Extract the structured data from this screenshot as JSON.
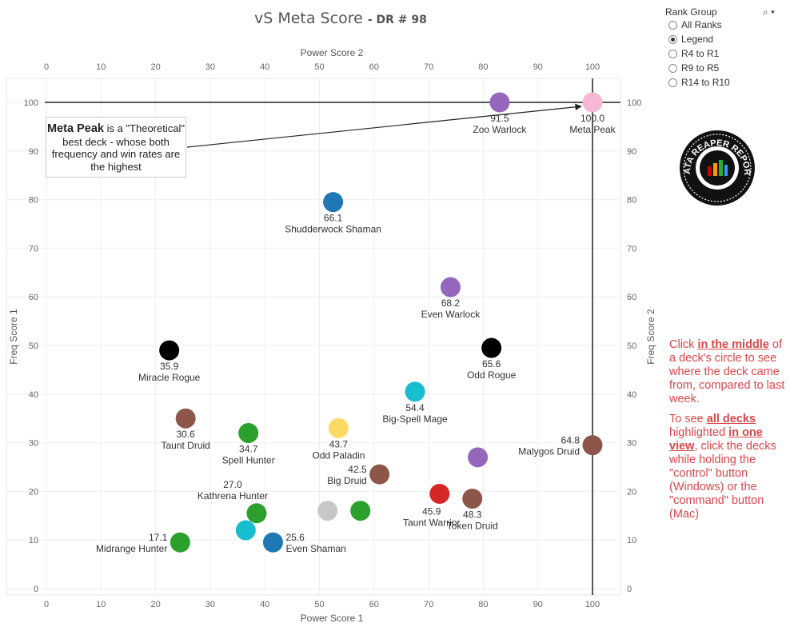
{
  "title": "vS Meta Score",
  "subtitle": "DR # 98",
  "x_axis_bottom": "Power Score 1",
  "x_axis_top": "Power Score 2",
  "y_axis_left": "Freq Score 1",
  "y_axis_right": "Freq Score 2",
  "rank_group": {
    "title": "Rank Group",
    "icons": "⌕ ▾",
    "options": [
      {
        "label": "All Ranks",
        "selected": false
      },
      {
        "label": "Legend",
        "selected": true
      },
      {
        "label": "R4 to R1",
        "selected": false
      },
      {
        "label": "R9 to R5",
        "selected": false
      },
      {
        "label": "R14 to R10",
        "selected": false
      }
    ]
  },
  "callout": {
    "bold": "Meta Peak",
    "text": " is a \"Theoretical\" best deck - whose both frequency and win rates are the highest"
  },
  "logo_text": "DATA REAPER REPORT",
  "instructions": {
    "p1_a": "Click ",
    "p1_u": "in the middle",
    "p1_b": " of a deck's circle to see where the deck came from, compared to last week.",
    "p2_a": "To see ",
    "p2_u1": "all decks",
    "p2_b": " highlighted ",
    "p2_u2": "in one view",
    "p2_c": ", click the decks while holding the \"control\" button (Windows) or the \"command\" button (Mac)"
  },
  "chart_data": {
    "type": "scatter",
    "xlim": [
      -1,
      105
    ],
    "ylim": [
      -1,
      105
    ],
    "x_ticks": [
      0,
      10,
      20,
      30,
      40,
      50,
      60,
      70,
      80,
      90,
      100
    ],
    "y_ticks": [
      0,
      10,
      20,
      30,
      40,
      50,
      60,
      70,
      80,
      90,
      100
    ],
    "reference_lines": {
      "x": 100,
      "y": 100
    },
    "points": [
      {
        "name": "Zoo Warlock",
        "score": "91.5",
        "x": 83,
        "y": 100,
        "color": "#9467bd",
        "label": "below"
      },
      {
        "name": "Meta Peak",
        "score": "100.0",
        "x": 100,
        "y": 100,
        "color": "#f7b6d2",
        "label": "below"
      },
      {
        "name": "Shudderwock Shaman",
        "score": "66.1",
        "x": 52.5,
        "y": 79.5,
        "color": "#1f77b4",
        "label": "below"
      },
      {
        "name": "Even Warlock",
        "score": "68.2",
        "x": 74,
        "y": 62,
        "color": "#9467bd",
        "label": "below"
      },
      {
        "name": "Miracle Rogue",
        "score": "35.9",
        "x": 22.5,
        "y": 49,
        "color": "#000000",
        "label": "below"
      },
      {
        "name": "Odd Rogue",
        "score": "65.6",
        "x": 81.5,
        "y": 49.5,
        "color": "#000000",
        "label": "below"
      },
      {
        "name": "Big-Spell Mage",
        "score": "54.4",
        "x": 67.5,
        "y": 40.5,
        "color": "#17becf",
        "label": "below"
      },
      {
        "name": "Taunt Druid",
        "score": "30.6",
        "x": 25.5,
        "y": 35,
        "color": "#8c564b",
        "label": "below"
      },
      {
        "name": "Spell Hunter",
        "score": "34.7",
        "x": 37,
        "y": 32,
        "color": "#2ca02c",
        "label": "below"
      },
      {
        "name": "Odd Paladin",
        "score": "43.7",
        "x": 53.5,
        "y": 33,
        "color": "#ffd966",
        "label": "below"
      },
      {
        "name": "Malygos Druid",
        "score": "64.8",
        "x": 100,
        "y": 29.5,
        "color": "#8c564b",
        "label": "left"
      },
      {
        "name": "",
        "score": "",
        "x": 79,
        "y": 27,
        "color": "#9467bd",
        "label": "none"
      },
      {
        "name": "Big Druid",
        "score": "42.5",
        "x": 61,
        "y": 23.5,
        "color": "#8c564b",
        "label": "left"
      },
      {
        "name": "Kathrena Hunter",
        "score": "27.0",
        "x": 38.5,
        "y": 15.5,
        "color": "#2ca02c",
        "label": "above-left"
      },
      {
        "name": "",
        "score": "",
        "x": 51.5,
        "y": 16,
        "color": "#c7c7c7",
        "label": "none"
      },
      {
        "name": "",
        "score": "",
        "x": 57.5,
        "y": 16,
        "color": "#2ca02c",
        "label": "none"
      },
      {
        "name": "Taunt Warrior",
        "score": "45.9",
        "x": 72,
        "y": 19.5,
        "color": "#d62728",
        "label": "below-left"
      },
      {
        "name": "Token Druid",
        "score": "48.3",
        "x": 78,
        "y": 18.5,
        "color": "#8c564b",
        "label": "below"
      },
      {
        "name": "",
        "score": "",
        "x": 36.5,
        "y": 12,
        "color": "#17becf",
        "label": "none"
      },
      {
        "name": "Even Shaman",
        "score": "25.6",
        "x": 41.5,
        "y": 9.5,
        "color": "#1f77b4",
        "label": "right"
      },
      {
        "name": "Midrange Hunter",
        "score": "17.1",
        "x": 24.5,
        "y": 9.5,
        "color": "#2ca02c",
        "label": "left"
      }
    ]
  }
}
